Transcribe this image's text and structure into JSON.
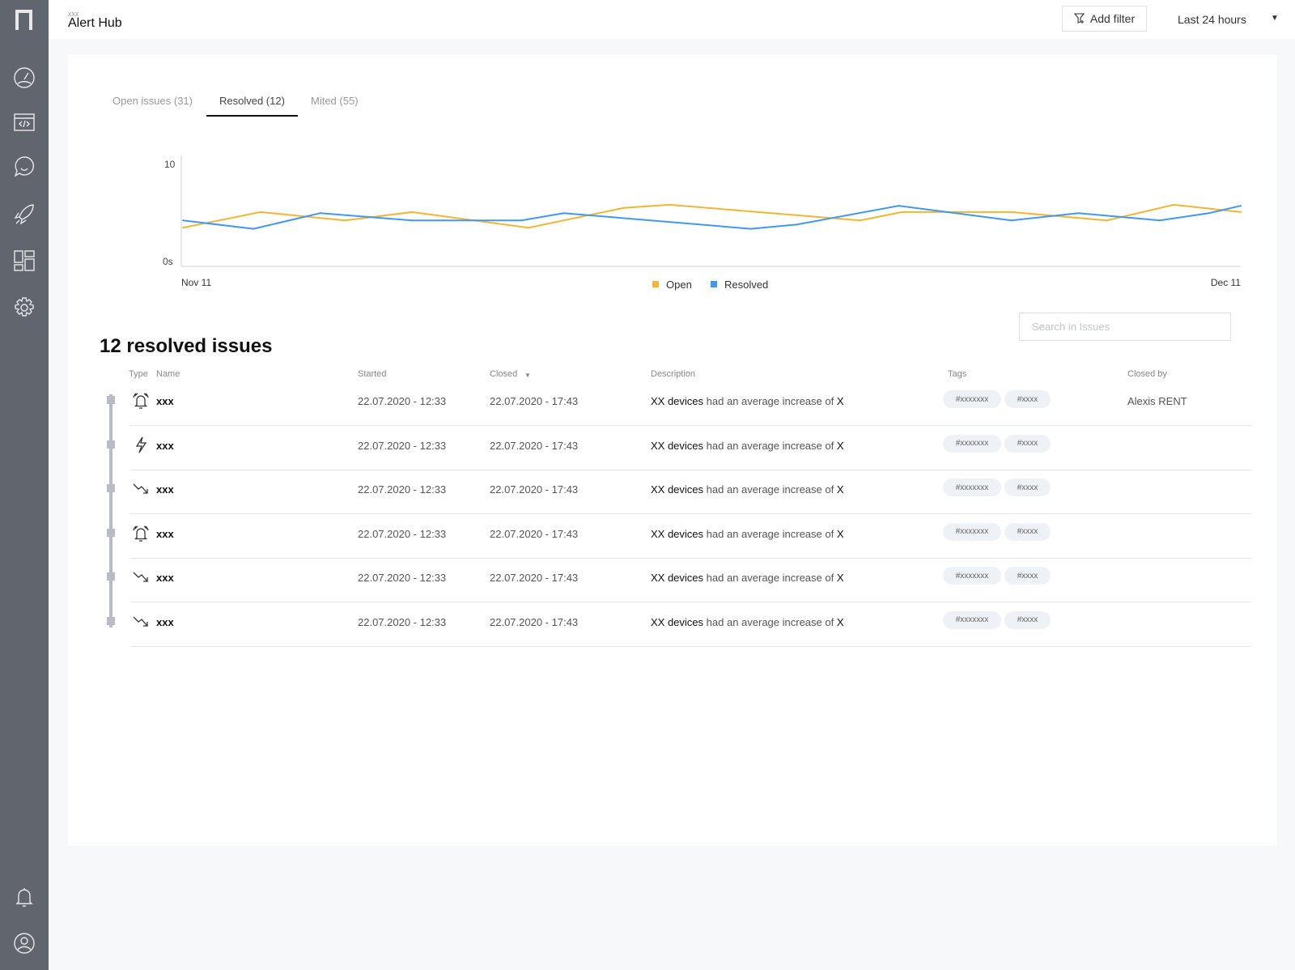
{
  "header": {
    "breadcrumb": "xxx",
    "title": "Alert Hub",
    "add_filter": "Add filter",
    "time_range": "Last 24 hours"
  },
  "sidebar": {
    "items": [
      {
        "icon": "dashboard-gauge-icon"
      },
      {
        "icon": "code-window-icon"
      },
      {
        "icon": "chat-smile-icon"
      },
      {
        "icon": "rocket-icon"
      },
      {
        "icon": "layout-grid-icon"
      },
      {
        "icon": "settings-gear-icon"
      },
      {
        "icon": "bell-icon"
      },
      {
        "icon": "user-icon"
      }
    ]
  },
  "tabs": [
    {
      "label": "Open issues (31)"
    },
    {
      "label": "Resolved (12)"
    },
    {
      "label": "Mited (55)"
    }
  ],
  "chart_data": {
    "type": "line",
    "x_start_label": "Nov 11",
    "x_end_label": "Dec 11",
    "xlim": [
      0,
      30
    ],
    "ylim": [
      0,
      10
    ],
    "y_ticks": [
      "0s",
      "10"
    ],
    "legend_position": "bottom-center",
    "colors": {
      "Open": "#f5b52e",
      "Resolved": "#3d99f5"
    },
    "series": [
      {
        "name": "Open",
        "x": [
          0,
          2.2,
          4.6,
          6.5,
          9.8,
          12.5,
          13.8,
          19.2,
          20.4,
          23.5,
          26.2,
          28.1,
          30
        ],
        "values": [
          3.7,
          5.2,
          4.4,
          5.2,
          3.7,
          5.6,
          5.9,
          4.4,
          5.2,
          5.2,
          4.4,
          5.9,
          5.2
        ]
      },
      {
        "name": "Resolved",
        "x": [
          0,
          2,
          3.9,
          6.5,
          9.6,
          10.8,
          16.1,
          17.4,
          20.3,
          23.5,
          25.4,
          27.7,
          29.1,
          30
        ],
        "values": [
          4.4,
          3.6,
          5.1,
          4.4,
          4.4,
          5.1,
          3.6,
          4.0,
          5.8,
          4.4,
          5.1,
          4.4,
          5.1,
          5.8
        ]
      }
    ]
  },
  "issues": {
    "title": "12 resolved issues",
    "search_placeholder": "Search in Issues",
    "columns": {
      "type": "Type",
      "name": "Name",
      "started": "Started",
      "closed": "Closed",
      "closed_sort": "▼",
      "description": "Description",
      "tags": "Tags",
      "closed_by": "Closed by"
    },
    "rows": [
      {
        "type": "alarm-bell-icon",
        "name": "xxx",
        "started": "22.07.2020 - 12:33",
        "closed": "22.07.2020 - 17:43",
        "desc_a": "XX devices",
        "desc_b": " had an average increase of ",
        "desc_c": "X",
        "tag1": "#xxxxxxx",
        "tag2": "#xxxx",
        "closed_by": "Alexis RENT"
      },
      {
        "type": "lightning-icon",
        "name": "xxx",
        "started": "22.07.2020 - 12:33",
        "closed": "22.07.2020 - 17:43",
        "desc_a": "XX devices",
        "desc_b": " had an average increase of ",
        "desc_c": "X",
        "tag1": "#xxxxxxx",
        "tag2": "#xxxx",
        "closed_by": ""
      },
      {
        "type": "trend-down-icon",
        "name": "xxx",
        "started": "22.07.2020 - 12:33",
        "closed": "22.07.2020 - 17:43",
        "desc_a": "XX devices",
        "desc_b": " had an average increase of ",
        "desc_c": "X",
        "tag1": "#xxxxxxx",
        "tag2": "#xxxx",
        "closed_by": ""
      },
      {
        "type": "alarm-bell-icon",
        "name": "xxx",
        "started": "22.07.2020 - 12:33",
        "closed": "22.07.2020 - 17:43",
        "desc_a": "XX devices",
        "desc_b": " had an average increase of ",
        "desc_c": "X",
        "tag1": "#xxxxxxx",
        "tag2": "#xxxx",
        "closed_by": ""
      },
      {
        "type": "trend-down-icon",
        "name": "xxx",
        "started": "22.07.2020 - 12:33",
        "closed": "22.07.2020 - 17:43",
        "desc_a": "XX devices",
        "desc_b": " had an average increase of ",
        "desc_c": "X",
        "tag1": "#xxxxxxx",
        "tag2": "#xxxx",
        "closed_by": ""
      },
      {
        "type": "trend-down-icon",
        "name": "xxx",
        "started": "22.07.2020 - 12:33",
        "closed": "22.07.2020 - 17:43",
        "desc_a": "XX devices",
        "desc_b": " had an average increase of ",
        "desc_c": "X",
        "tag1": "#xxxxxxx",
        "tag2": "#xxxx",
        "closed_by": ""
      }
    ]
  }
}
